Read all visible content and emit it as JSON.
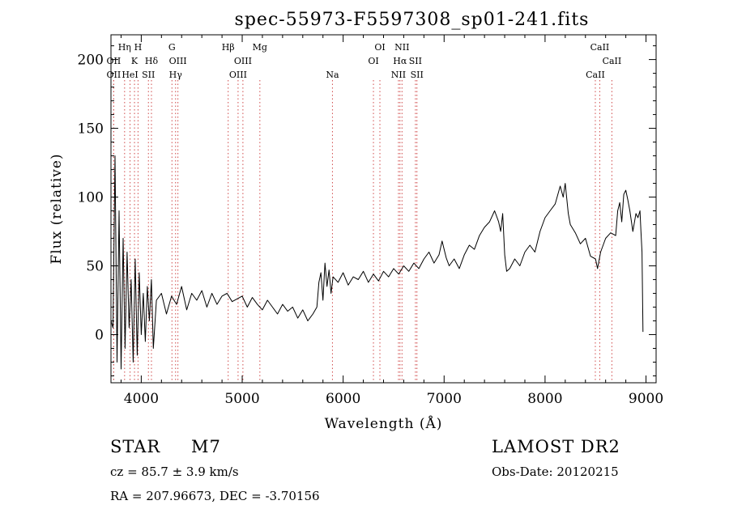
{
  "chart_data": {
    "type": "line",
    "title": "spec-55973-F5597308_sp01-241.fits",
    "xlabel": "Wavelength (Å)",
    "ylabel": "Flux (relative)",
    "xlim": [
      3700,
      9100
    ],
    "ylim": [
      -35,
      218
    ],
    "xticks": [
      4000,
      5000,
      6000,
      7000,
      8000,
      9000
    ],
    "yticks": [
      0,
      50,
      100,
      150,
      200
    ],
    "grid": false,
    "line_color": "#000000",
    "marker_color": "#d04a4a",
    "series": [
      {
        "x": [
          3700,
          3720,
          3740,
          3760,
          3780,
          3800,
          3820,
          3840,
          3860,
          3880,
          3900,
          3920,
          3940,
          3960,
          3980,
          4000,
          4020,
          4040,
          4060,
          4080,
          4100,
          4120,
          4150,
          4200,
          4250,
          4300,
          4350,
          4400,
          4450,
          4500,
          4550,
          4600,
          4650,
          4700,
          4750,
          4800,
          4850,
          4900,
          4950,
          5000,
          5050,
          5100,
          5150,
          5200,
          5250,
          5300,
          5350,
          5400,
          5450,
          5500,
          5550,
          5600,
          5650,
          5700,
          5740,
          5760,
          5780,
          5800,
          5820,
          5840,
          5860,
          5880,
          5900,
          5950,
          6000,
          6050,
          6100,
          6150,
          6200,
          6250,
          6300,
          6350,
          6400,
          6450,
          6500,
          6550,
          6600,
          6650,
          6700,
          6750,
          6800,
          6850,
          6900,
          6950,
          6980,
          7000,
          7020,
          7050,
          7100,
          7150,
          7200,
          7250,
          7300,
          7350,
          7400,
          7450,
          7500,
          7540,
          7560,
          7580,
          7600,
          7620,
          7650,
          7700,
          7750,
          7800,
          7850,
          7900,
          7950,
          8000,
          8050,
          8100,
          8150,
          8180,
          8200,
          8230,
          8250,
          8300,
          8350,
          8400,
          8450,
          8500,
          8520,
          8550,
          8600,
          8650,
          8700,
          8720,
          8740,
          8760,
          8780,
          8800,
          8820,
          8840,
          8870,
          8900,
          8920,
          8940,
          8950,
          8960,
          8970
        ],
        "y": [
          10,
          5,
          130,
          -20,
          90,
          -25,
          70,
          -10,
          60,
          5,
          40,
          -20,
          55,
          -15,
          45,
          0,
          30,
          -5,
          35,
          10,
          40,
          -10,
          25,
          30,
          15,
          28,
          22,
          35,
          18,
          30,
          25,
          32,
          20,
          30,
          22,
          28,
          30,
          24,
          26,
          28,
          20,
          27,
          22,
          18,
          25,
          20,
          15,
          22,
          17,
          20,
          12,
          18,
          10,
          15,
          20,
          38,
          45,
          25,
          52,
          35,
          47,
          30,
          42,
          38,
          45,
          36,
          42,
          40,
          46,
          38,
          44,
          39,
          46,
          42,
          48,
          44,
          50,
          46,
          52,
          48,
          55,
          60,
          52,
          58,
          68,
          62,
          56,
          50,
          55,
          48,
          58,
          65,
          62,
          72,
          78,
          82,
          90,
          82,
          75,
          88,
          58,
          46,
          48,
          55,
          50,
          60,
          65,
          60,
          75,
          85,
          90,
          95,
          108,
          100,
          110,
          88,
          80,
          74,
          66,
          70,
          57,
          55,
          48,
          60,
          70,
          74,
          72,
          90,
          96,
          82,
          102,
          105,
          98,
          90,
          75,
          88,
          85,
          90,
          75,
          60,
          2
        ]
      }
    ],
    "line_markers": [
      {
        "x": 3727,
        "row": 1,
        "label": "OII"
      },
      {
        "x": 3727,
        "row": 2,
        "label": "OII"
      },
      {
        "x": 3835,
        "row": 0,
        "label": "Hη"
      },
      {
        "x": 3889,
        "row": 2,
        "label": "HeI"
      },
      {
        "x": 3933,
        "row": 1,
        "label": "K"
      },
      {
        "x": 3968,
        "row": 0,
        "label": "H"
      },
      {
        "x": 4071,
        "row": 2,
        "label": "SII"
      },
      {
        "x": 4101,
        "row": 1,
        "label": "Hδ"
      },
      {
        "x": 4304,
        "row": 0,
        "label": "G"
      },
      {
        "x": 4340,
        "row": 2,
        "label": "Hγ"
      },
      {
        "x": 4363,
        "row": 1,
        "label": "OIII"
      },
      {
        "x": 4861,
        "row": 0,
        "label": "Hβ"
      },
      {
        "x": 4959,
        "row": 2,
        "label": "OIII"
      },
      {
        "x": 5007,
        "row": 1,
        "label": "OIII"
      },
      {
        "x": 5175,
        "row": 0,
        "label": "Mg"
      },
      {
        "x": 5894,
        "row": 2,
        "label": "Na"
      },
      {
        "x": 6300,
        "row": 1,
        "label": "OI"
      },
      {
        "x": 6364,
        "row": 0,
        "label": "OI"
      },
      {
        "x": 6548,
        "row": 2,
        "label": "NII"
      },
      {
        "x": 6563,
        "row": 1,
        "label": "Hα"
      },
      {
        "x": 6583,
        "row": 0,
        "label": "NII"
      },
      {
        "x": 6716,
        "row": 1,
        "label": "SII"
      },
      {
        "x": 6731,
        "row": 2,
        "label": "SII"
      },
      {
        "x": 8498,
        "row": 2,
        "label": "CaII"
      },
      {
        "x": 8542,
        "row": 0,
        "label": "CaII"
      },
      {
        "x": 8662,
        "row": 1,
        "label": "CaII"
      }
    ]
  },
  "info": {
    "object_class": "STAR",
    "subclass": "M7",
    "survey": "LAMOST DR2",
    "redshift": "cz = 85.7 ± 3.9 km/s",
    "obs_date": "Obs-Date: 20120215",
    "coords": "RA = 207.96673, DEC =  -3.70156"
  }
}
